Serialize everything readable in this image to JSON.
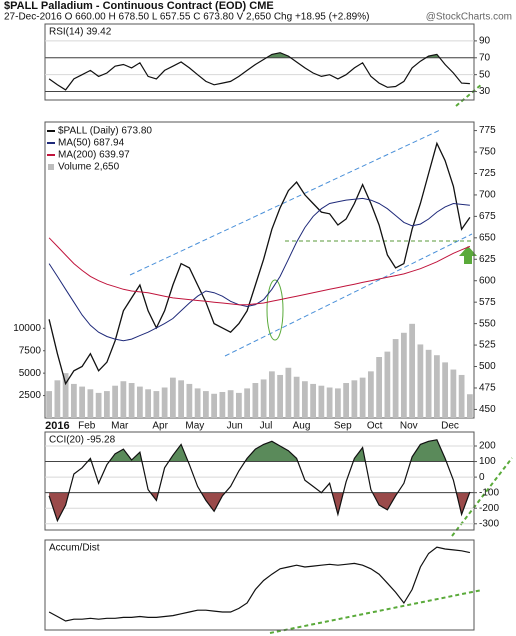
{
  "header": {
    "title": "$PALL Palladium - Continuous Contract (EOD) CME",
    "quote": "27-Dec-2016 O 660.00 H 678.50 L 657.55 C 673.80 V 2,650 Chg +18.95 (+2.89%)",
    "credit": "@StockCharts.com"
  },
  "chart_data": [
    {
      "type": "line",
      "title": "RSI(14) 39.42",
      "color": "#111111",
      "values": [
        45,
        38,
        32,
        45,
        50,
        55,
        48,
        52,
        60,
        62,
        58,
        64,
        48,
        45,
        55,
        60,
        65,
        58,
        50,
        42,
        38,
        40,
        42,
        48,
        55,
        62,
        68,
        74,
        76,
        72,
        65,
        58,
        52,
        48,
        50,
        45,
        50,
        58,
        64,
        48,
        40,
        35,
        36,
        42,
        58,
        66,
        72,
        74,
        62,
        52,
        40,
        39.42
      ],
      "ylim": [
        20,
        110
      ],
      "yticks": [
        30,
        50,
        70,
        90
      ],
      "grid": true,
      "fill_above": 70,
      "fill_below": 30,
      "fill_above_color": "#5a8a5a",
      "fill_below_color": "#9a4a4a"
    },
    {
      "type": "line",
      "categories": [
        "2016",
        null,
        null,
        null,
        "Feb",
        null,
        null,
        null,
        "Mar",
        null,
        null,
        null,
        null,
        "Apr",
        null,
        null,
        null,
        "May",
        null,
        null,
        null,
        null,
        "Jun",
        null,
        null,
        null,
        "Jul",
        null,
        null,
        null,
        "Aug",
        null,
        null,
        null,
        null,
        "Sep",
        null,
        null,
        null,
        "Oct",
        null,
        null,
        null,
        "Nov",
        null,
        null,
        null,
        null,
        "Dec",
        null,
        null,
        null
      ],
      "series": [
        {
          "name": "$PALL (Daily) 673.80",
          "color": "#111111",
          "values": [
            555,
            515,
            480,
            495,
            500,
            515,
            495,
            505,
            530,
            565,
            580,
            595,
            565,
            545,
            565,
            595,
            620,
            615,
            595,
            575,
            550,
            545,
            540,
            550,
            565,
            595,
            625,
            660,
            685,
            705,
            715,
            700,
            690,
            680,
            678,
            665,
            672,
            690,
            712,
            690,
            665,
            630,
            615,
            620,
            660,
            690,
            725,
            760,
            740,
            710,
            660,
            673.8
          ]
        },
        {
          "name": "MA(50) 687.94",
          "color": "#1f2a7a",
          "values": [
            620,
            605,
            590,
            575,
            560,
            548,
            540,
            535,
            532,
            530,
            532,
            536,
            540,
            545,
            550,
            556,
            565,
            574,
            582,
            588,
            586,
            582,
            576,
            572,
            570,
            572,
            578,
            590,
            605,
            625,
            645,
            662,
            675,
            684,
            690,
            692,
            694,
            695,
            696,
            694,
            690,
            684,
            676,
            668,
            664,
            666,
            672,
            680,
            686,
            690,
            689,
            687.94
          ]
        },
        {
          "name": "MA(200) 639.97",
          "color": "#c0143c",
          "values": [
            650,
            640,
            630,
            620,
            612,
            605,
            600,
            596,
            593,
            590,
            588,
            587,
            586,
            584,
            582,
            580,
            579,
            578,
            577,
            576,
            575,
            574,
            573,
            572,
            572,
            573,
            574,
            576,
            578,
            580,
            582,
            584,
            586,
            588,
            590,
            592,
            594,
            596,
            598,
            600,
            602,
            604,
            606,
            608,
            611,
            614,
            618,
            622,
            627,
            632,
            636,
            639.97
          ]
        },
        {
          "name": "Volume 2,650",
          "color": "#bdbdbd",
          "type": "bar",
          "axis": "y2",
          "values": [
            3000,
            4200,
            5000,
            3800,
            3500,
            3200,
            2800,
            3000,
            3600,
            4100,
            3900,
            3500,
            3200,
            3000,
            3400,
            4500,
            4200,
            3800,
            3300,
            3000,
            2700,
            2900,
            3100,
            2800,
            3300,
            3900,
            4300,
            5200,
            4800,
            5600,
            4600,
            4100,
            3800,
            3600,
            3400,
            3300,
            3900,
            4200,
            4500,
            5200,
            6800,
            7400,
            8800,
            9500,
            10500,
            8200,
            7600,
            7000,
            6200,
            5400,
            4800,
            2650
          ]
        }
      ],
      "ylim": [
        440,
        785
      ],
      "yticks": [
        450,
        475,
        500,
        525,
        550,
        575,
        600,
        625,
        650,
        675,
        700,
        725,
        750,
        775
      ],
      "y2lim": [
        0,
        33000
      ],
      "y2ticks": [
        2500,
        5000,
        7500,
        10000
      ],
      "grid": false,
      "legend": "top-left"
    },
    {
      "type": "line",
      "title": "CCI(20) -95.28",
      "color": "#111111",
      "values": [
        -120,
        -280,
        -180,
        20,
        60,
        120,
        -40,
        80,
        150,
        180,
        110,
        160,
        -80,
        -150,
        60,
        140,
        210,
        80,
        -60,
        -150,
        -220,
        -120,
        -60,
        40,
        120,
        180,
        210,
        230,
        200,
        170,
        120,
        -20,
        -60,
        -100,
        -40,
        -240,
        -30,
        120,
        190,
        -80,
        -180,
        -210,
        -120,
        -40,
        130,
        210,
        230,
        240,
        120,
        -20,
        -240,
        -95.28
      ],
      "ylim": [
        -340,
        290
      ],
      "yticks": [
        200,
        100,
        0,
        -100,
        -200,
        -300
      ],
      "grid": true,
      "fill_above": 100,
      "fill_below": -100,
      "fill_above_color": "#5a8a5a",
      "fill_below_color": "#9a4a4a"
    },
    {
      "type": "line",
      "title": "Accum/Dist",
      "color": "#111111",
      "values": [
        20,
        15,
        10,
        12,
        12,
        13,
        12,
        13,
        13,
        14,
        14,
        15,
        14,
        14,
        15,
        16,
        18,
        20,
        22,
        22,
        21,
        20,
        20,
        24,
        30,
        45,
        55,
        62,
        68,
        70,
        72,
        70,
        71,
        72,
        73,
        72,
        73,
        74,
        72,
        68,
        62,
        52,
        42,
        30,
        45,
        70,
        85,
        92,
        90,
        89,
        88,
        86
      ],
      "ylim": [
        0,
        100
      ]
    }
  ]
}
